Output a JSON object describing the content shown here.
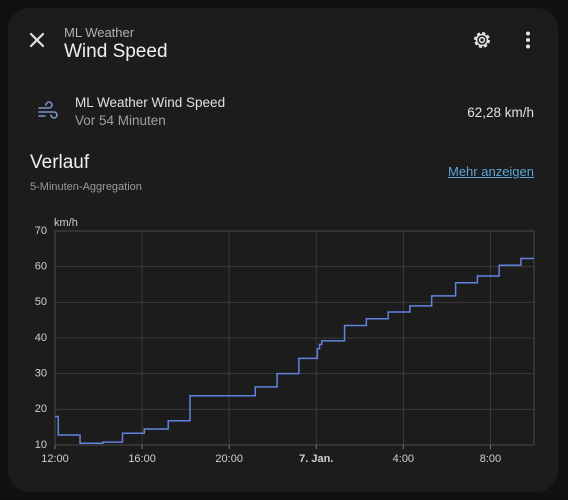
{
  "header": {
    "kicker": "ML Weather",
    "title": "Wind Speed"
  },
  "entity": {
    "name": "ML Weather Wind Speed",
    "time": "Vor 54 Minuten",
    "value": "62,28 km/h"
  },
  "history": {
    "title": "Verlauf",
    "subtitle": "5-Minuten-Aggregation",
    "link": "Mehr anzeigen"
  },
  "chart_data": {
    "type": "line",
    "y_label": "km/h",
    "color": "#6183e0",
    "grid": true,
    "xlim": [
      0,
      22
    ],
    "ylim": [
      10,
      70
    ],
    "xticks": [
      {
        "value": 0,
        "label": "12:00"
      },
      {
        "value": 4,
        "label": "16:00"
      },
      {
        "value": 8,
        "label": "20:00"
      },
      {
        "value": 12,
        "label": "7. Jan."
      },
      {
        "value": 16,
        "label": "4:00"
      },
      {
        "value": 20,
        "label": "8:00"
      }
    ],
    "yticks": [
      10,
      20,
      30,
      40,
      50,
      60,
      70
    ],
    "x": [
      0,
      0.15,
      0.15,
      1.15,
      1.15,
      2.2,
      2.2,
      3.1,
      3.1,
      4.1,
      4.1,
      5.2,
      5.2,
      6.2,
      6.2,
      9.2,
      9.2,
      10.2,
      10.2,
      11.2,
      11.2,
      12.05,
      12.05,
      12.15,
      12.15,
      12.25,
      12.25,
      13.3,
      13.3,
      14.3,
      14.3,
      15.3,
      15.3,
      16.3,
      16.3,
      17.3,
      17.3,
      18.4,
      18.4,
      19.4,
      19.4,
      20.4,
      20.4,
      21.4,
      21.4,
      22
    ],
    "values": [
      18,
      18,
      12.8,
      12.8,
      10.5,
      10.5,
      10.8,
      10.8,
      13.3,
      13.3,
      14.5,
      14.5,
      16.8,
      16.8,
      23.8,
      23.8,
      26.3,
      26.3,
      30,
      30,
      34.3,
      34.3,
      37,
      37,
      38.2,
      38.2,
      39.2,
      39.2,
      43.5,
      43.5,
      45.4,
      45.4,
      47.3,
      47.3,
      49,
      49,
      51.8,
      51.8,
      55.5,
      55.5,
      57.4,
      57.4,
      60.4,
      60.4,
      62.3,
      62.3
    ]
  }
}
